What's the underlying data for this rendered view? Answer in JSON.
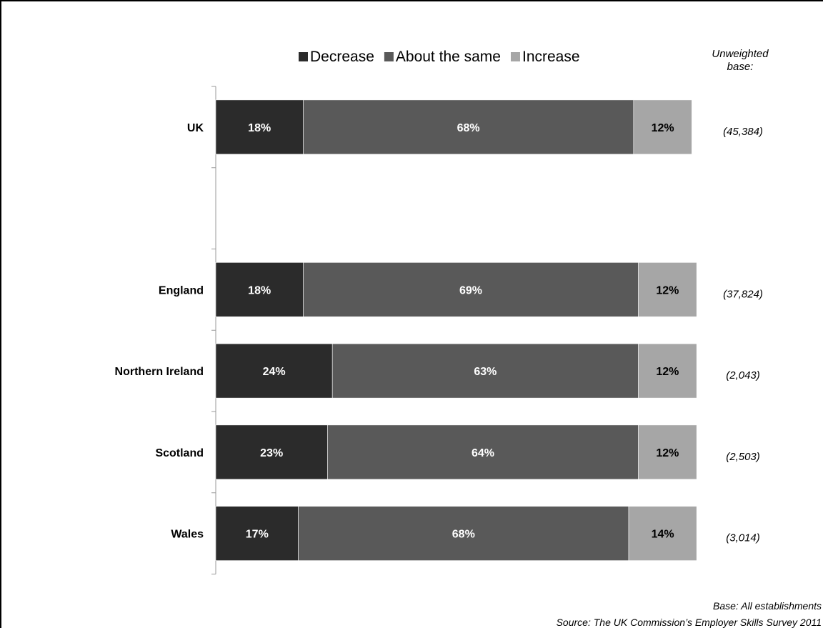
{
  "chart_data": {
    "type": "bar",
    "stacked": true,
    "orientation": "horizontal",
    "categories": [
      "UK",
      "",
      "England",
      "Northern Ireland",
      "Scotland",
      "Wales"
    ],
    "series": [
      {
        "name": "Decrease",
        "color": "#2b2b2b",
        "values": [
          18,
          null,
          18,
          24,
          23,
          17
        ],
        "labels": [
          "18%",
          "",
          "18%",
          "24%",
          "23%",
          "17%"
        ]
      },
      {
        "name": "About the same",
        "color": "#595959",
        "values": [
          68,
          null,
          69,
          63,
          64,
          68
        ],
        "labels": [
          "68%",
          "",
          "69%",
          "63%",
          "64%",
          "68%"
        ]
      },
      {
        "name": "Increase",
        "color": "#a6a6a6",
        "values": [
          12,
          null,
          12,
          12,
          12,
          14
        ],
        "labels": [
          "12%",
          "",
          "12%",
          "12%",
          "12%",
          "14%"
        ]
      }
    ],
    "legend_position": "top",
    "base_header": "Unweighted base:",
    "bases": [
      "(45,384)",
      "",
      "(37,824)",
      "(2,043)",
      "(2,503)",
      "(3,014)"
    ],
    "footnote_base": "Base: All establishments",
    "footnote_source": "Source: The UK Commission’s Employer Skills Survey 2011"
  }
}
